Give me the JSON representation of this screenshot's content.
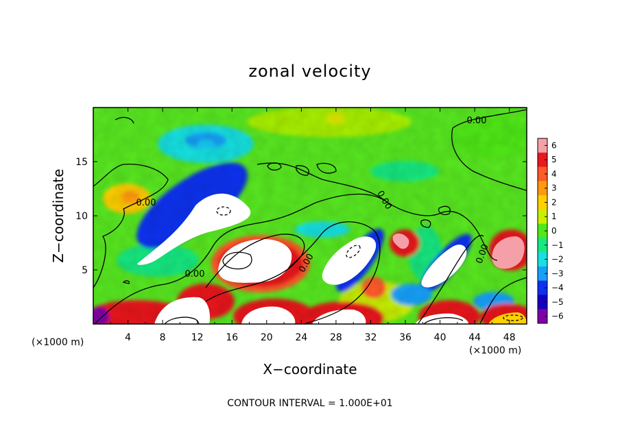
{
  "chart_data": {
    "type": "heatmap",
    "title": "zonal velocity",
    "xlabel": "X−coordinate",
    "ylabel": "Z−coordinate",
    "x_unit_left": "(×1000 m)",
    "x_unit_right": "(×1000 m)",
    "xlim": [
      0,
      50
    ],
    "ylim": [
      0,
      20
    ],
    "x_ticks": [
      4,
      8,
      12,
      16,
      20,
      24,
      28,
      32,
      36,
      40,
      44,
      48
    ],
    "y_ticks": [
      5,
      10,
      15
    ],
    "colorbar": {
      "min": -6,
      "max": 6,
      "ticks": [
        6,
        5,
        4,
        3,
        2,
        1,
        0,
        -1,
        -2,
        -3,
        -4,
        -5,
        -6
      ],
      "tick_labels": [
        "6",
        "5",
        "4",
        "3",
        "2",
        "1",
        "0",
        "−1",
        "−2",
        "−3",
        "−4",
        "−5",
        "−6"
      ],
      "colors": [
        "#f5a0a8",
        "#e8181e",
        "#ff5a2a",
        "#ff9a10",
        "#ffd000",
        "#c8f000",
        "#50e818",
        "#18e880",
        "#18e0e0",
        "#18a0f8",
        "#1030f0",
        "#1800c0",
        "#8000a8"
      ]
    },
    "contour_interval_text": "CONTOUR INTERVAL = 1.000E+01",
    "contour_labels": [
      "0.00",
      "0.00",
      "0.00",
      "0.00",
      "0.00",
      "0.00",
      "0.00"
    ],
    "features": [
      {
        "x": 15.5,
        "z": 9.5,
        "value": -6.5
      },
      {
        "x": 19,
        "z": 6.5,
        "value": 7
      },
      {
        "x": 29.5,
        "z": 6.5,
        "value": -7
      },
      {
        "x": 35,
        "z": 7,
        "value": 6
      },
      {
        "x": 40.5,
        "z": 5,
        "value": -7
      },
      {
        "x": 48,
        "z": 6.5,
        "value": 6
      },
      {
        "x": 11,
        "z": 1,
        "value": 7
      },
      {
        "x": 19.5,
        "z": 1,
        "value": 7
      },
      {
        "x": 29.5,
        "z": 1,
        "value": 7
      },
      {
        "x": 40,
        "z": 1,
        "value": 7
      },
      {
        "x": 5,
        "z": 11.5,
        "value": 2.5
      },
      {
        "x": 28,
        "z": 19,
        "value": 2
      },
      {
        "x": 13,
        "z": 16.5,
        "value": -2
      },
      {
        "x": 47,
        "z": 16,
        "value": 0.3
      }
    ]
  }
}
